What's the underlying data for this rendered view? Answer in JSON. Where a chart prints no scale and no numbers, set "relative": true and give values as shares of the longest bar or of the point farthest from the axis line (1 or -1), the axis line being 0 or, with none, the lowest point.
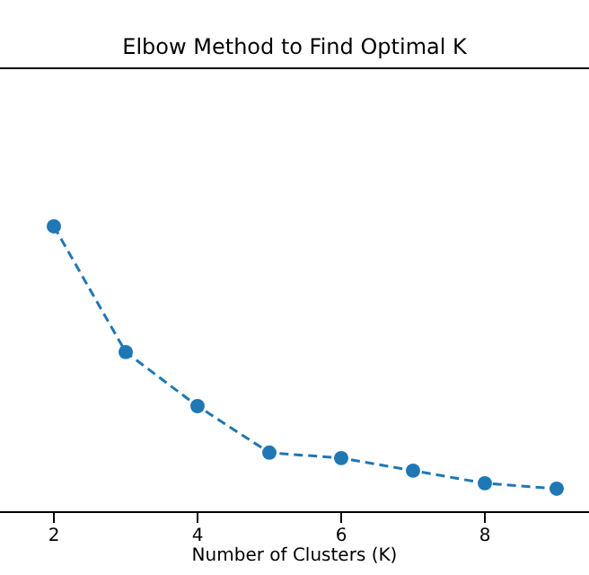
{
  "chart_data": {
    "type": "line",
    "title": "Elbow Method to Find Optimal K",
    "xlabel": "Number of Clusters (K)",
    "x": [
      2,
      3,
      4,
      5,
      6,
      7,
      8,
      9
    ],
    "xlim": [
      1.25,
      9.45
    ],
    "xticks": [
      2,
      4,
      6,
      8
    ],
    "relative": true,
    "series": [
      {
        "color": "#1f77b4",
        "values": [
          1,
          0.56,
          0.371,
          0.208,
          0.189,
          0.145,
          0.101,
          0.082
        ]
      }
    ],
    "marker": "circle",
    "line_style": "dashed"
  }
}
